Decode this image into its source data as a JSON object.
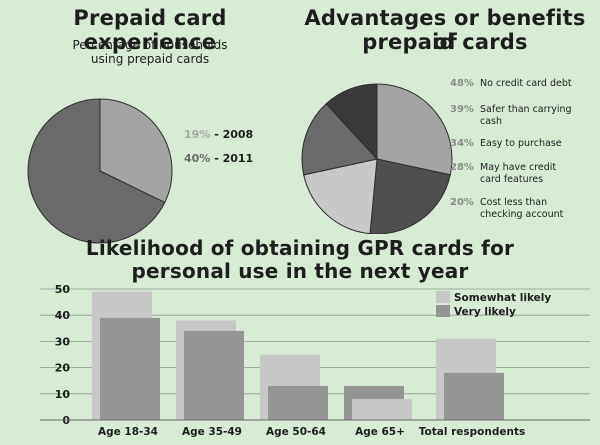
{
  "panel1": {
    "title": "Prepaid card experience",
    "subtitle_line1": "Percentage of households",
    "subtitle_line2": "using prepaid cards"
  },
  "panel2": {
    "title_line1": "Advantages or benefits of",
    "title_line2": "prepaid cards"
  },
  "panel3": {
    "title_line1": "Likelihood of obtaining GPR cards for",
    "title_line2": "personal use in the next year"
  },
  "colors": {
    "background": "#d7ebd5",
    "light_gray": "#c8c8c8",
    "mid_gray": "#a4a4a4",
    "dark_gray": "#6b6b6b",
    "darker_gray": "#4f4f4f",
    "darkest_gray": "#3a3a3a"
  },
  "chart_data": [
    {
      "type": "pie",
      "title": "Prepaid card experience",
      "subtitle": "Percentage of households using prepaid cards",
      "labels": [
        "2008",
        "2011"
      ],
      "values": [
        19,
        40
      ],
      "value_labels": [
        "19%",
        "40%"
      ],
      "legend_entries": [
        "19% - 2008",
        "40% - 2011"
      ],
      "legend_placement": "right"
    },
    {
      "type": "pie",
      "title": "Advantages or benefits of prepaid cards",
      "labels": [
        "No credit card debt",
        "Safer than carrying cash",
        "Easy to purchase",
        "May have credit card features",
        "Cost less than checking account"
      ],
      "label_lines": [
        [
          "No credit card debt"
        ],
        [
          "Safer than carrying",
          "cash"
        ],
        [
          "Easy to purchase"
        ],
        [
          "May have credit",
          "card features"
        ],
        [
          "Cost less than",
          "checking account"
        ]
      ],
      "values": [
        48,
        39,
        34,
        28,
        20
      ],
      "value_labels": [
        "48%",
        "39%",
        "34%",
        "28%",
        "20%"
      ],
      "legend_placement": "right"
    },
    {
      "type": "bar",
      "title": "Likelihood of obtaining GPR cards for personal use in the next year",
      "categories": [
        "Age 18-34",
        "Age 35-49",
        "Age 50-64",
        "Age 65+",
        "Total respondents"
      ],
      "series": [
        {
          "name": "Somewhat likely",
          "values": [
            49,
            38,
            25,
            8,
            31
          ]
        },
        {
          "name": "Very likely",
          "values": [
            39,
            34,
            13,
            13,
            18
          ]
        }
      ],
      "ylim": [
        0,
        50
      ],
      "yticks": [
        0,
        10,
        20,
        30,
        40,
        50
      ],
      "xlabel": "",
      "ylabel": "",
      "grid": true,
      "legend_placement": "top-right"
    }
  ]
}
